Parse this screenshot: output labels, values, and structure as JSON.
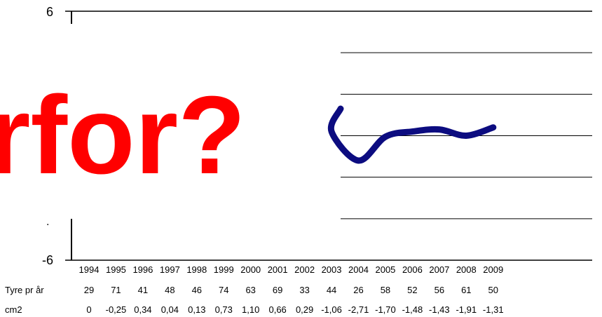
{
  "overlay": {
    "text": "rfor?",
    "color": "#ff0000"
  },
  "chart_data": {
    "type": "line",
    "title": "",
    "xlabel": "",
    "ylabel": "",
    "ylim": [
      -6,
      6
    ],
    "ytick_labels": [
      "6",
      "-6"
    ],
    "categories": [
      "1994",
      "1995",
      "1996",
      "1997",
      "1998",
      "1999",
      "2000",
      "2001",
      "2002",
      "2003",
      "2004",
      "2005",
      "2006",
      "2007",
      "2008",
      "2009"
    ],
    "series": [
      {
        "name": "",
        "color": "#0c0c80",
        "x": [
          "2002",
          "2003",
          "2004",
          "2005",
          "2006",
          "2007",
          "2008",
          "2009"
        ],
        "values": [
          1.3,
          0.2,
          -1.2,
          -0.05,
          0.2,
          0.3,
          0.0,
          0.4
        ]
      }
    ],
    "grid": true,
    "table": [
      {
        "label": "Tyre pr år",
        "values": [
          "29",
          "71",
          "41",
          "48",
          "46",
          "74",
          "63",
          "69",
          "33",
          "44",
          "26",
          "58",
          "52",
          "56",
          "61",
          "50"
        ]
      },
      {
        "label": "cm2",
        "values": [
          "0",
          "-0,25",
          "0,34",
          "0,04",
          "0,13",
          "0,73",
          "1,10",
          "0,66",
          "0,29",
          "-1,06",
          "-2,71",
          "-1,70",
          "-1,48",
          "-1,43",
          "-1,91",
          "-1,31"
        ]
      }
    ]
  }
}
